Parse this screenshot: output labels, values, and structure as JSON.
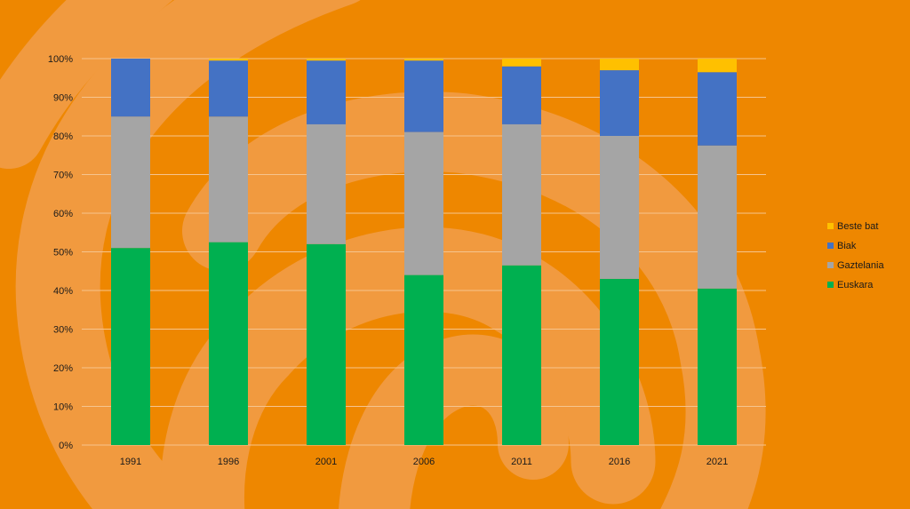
{
  "chart_data": {
    "type": "bar",
    "stacked": true,
    "percent": true,
    "title": "",
    "xlabel": "",
    "ylabel": "",
    "ylim": [
      0,
      100
    ],
    "yticks": [
      0,
      10,
      20,
      30,
      40,
      50,
      60,
      70,
      80,
      90,
      100
    ],
    "ytick_suffix": "%",
    "grid": true,
    "legend_position": "right",
    "categories": [
      "1991",
      "1996",
      "2001",
      "2006",
      "2011",
      "2016",
      "2021"
    ],
    "series": [
      {
        "name": "Euskara",
        "color": "#00b050",
        "values": [
          51,
          52.5,
          52,
          44,
          46.5,
          43,
          40.5
        ]
      },
      {
        "name": "Gaztelania",
        "color": "#a5a5a5",
        "values": [
          34,
          32.5,
          31,
          37,
          36.5,
          37,
          37
        ]
      },
      {
        "name": "Biak",
        "color": "#4472c4",
        "values": [
          15,
          14.5,
          16.5,
          18.5,
          15,
          17,
          19
        ]
      },
      {
        "name": "Beste bat",
        "color": "#ffc000",
        "values": [
          0,
          0.5,
          0.5,
          0.5,
          2,
          3,
          3.5
        ]
      }
    ]
  },
  "colors": {
    "background": "#ee8700",
    "swirl": "#f19a3f",
    "gridline": "#f6c48e"
  }
}
